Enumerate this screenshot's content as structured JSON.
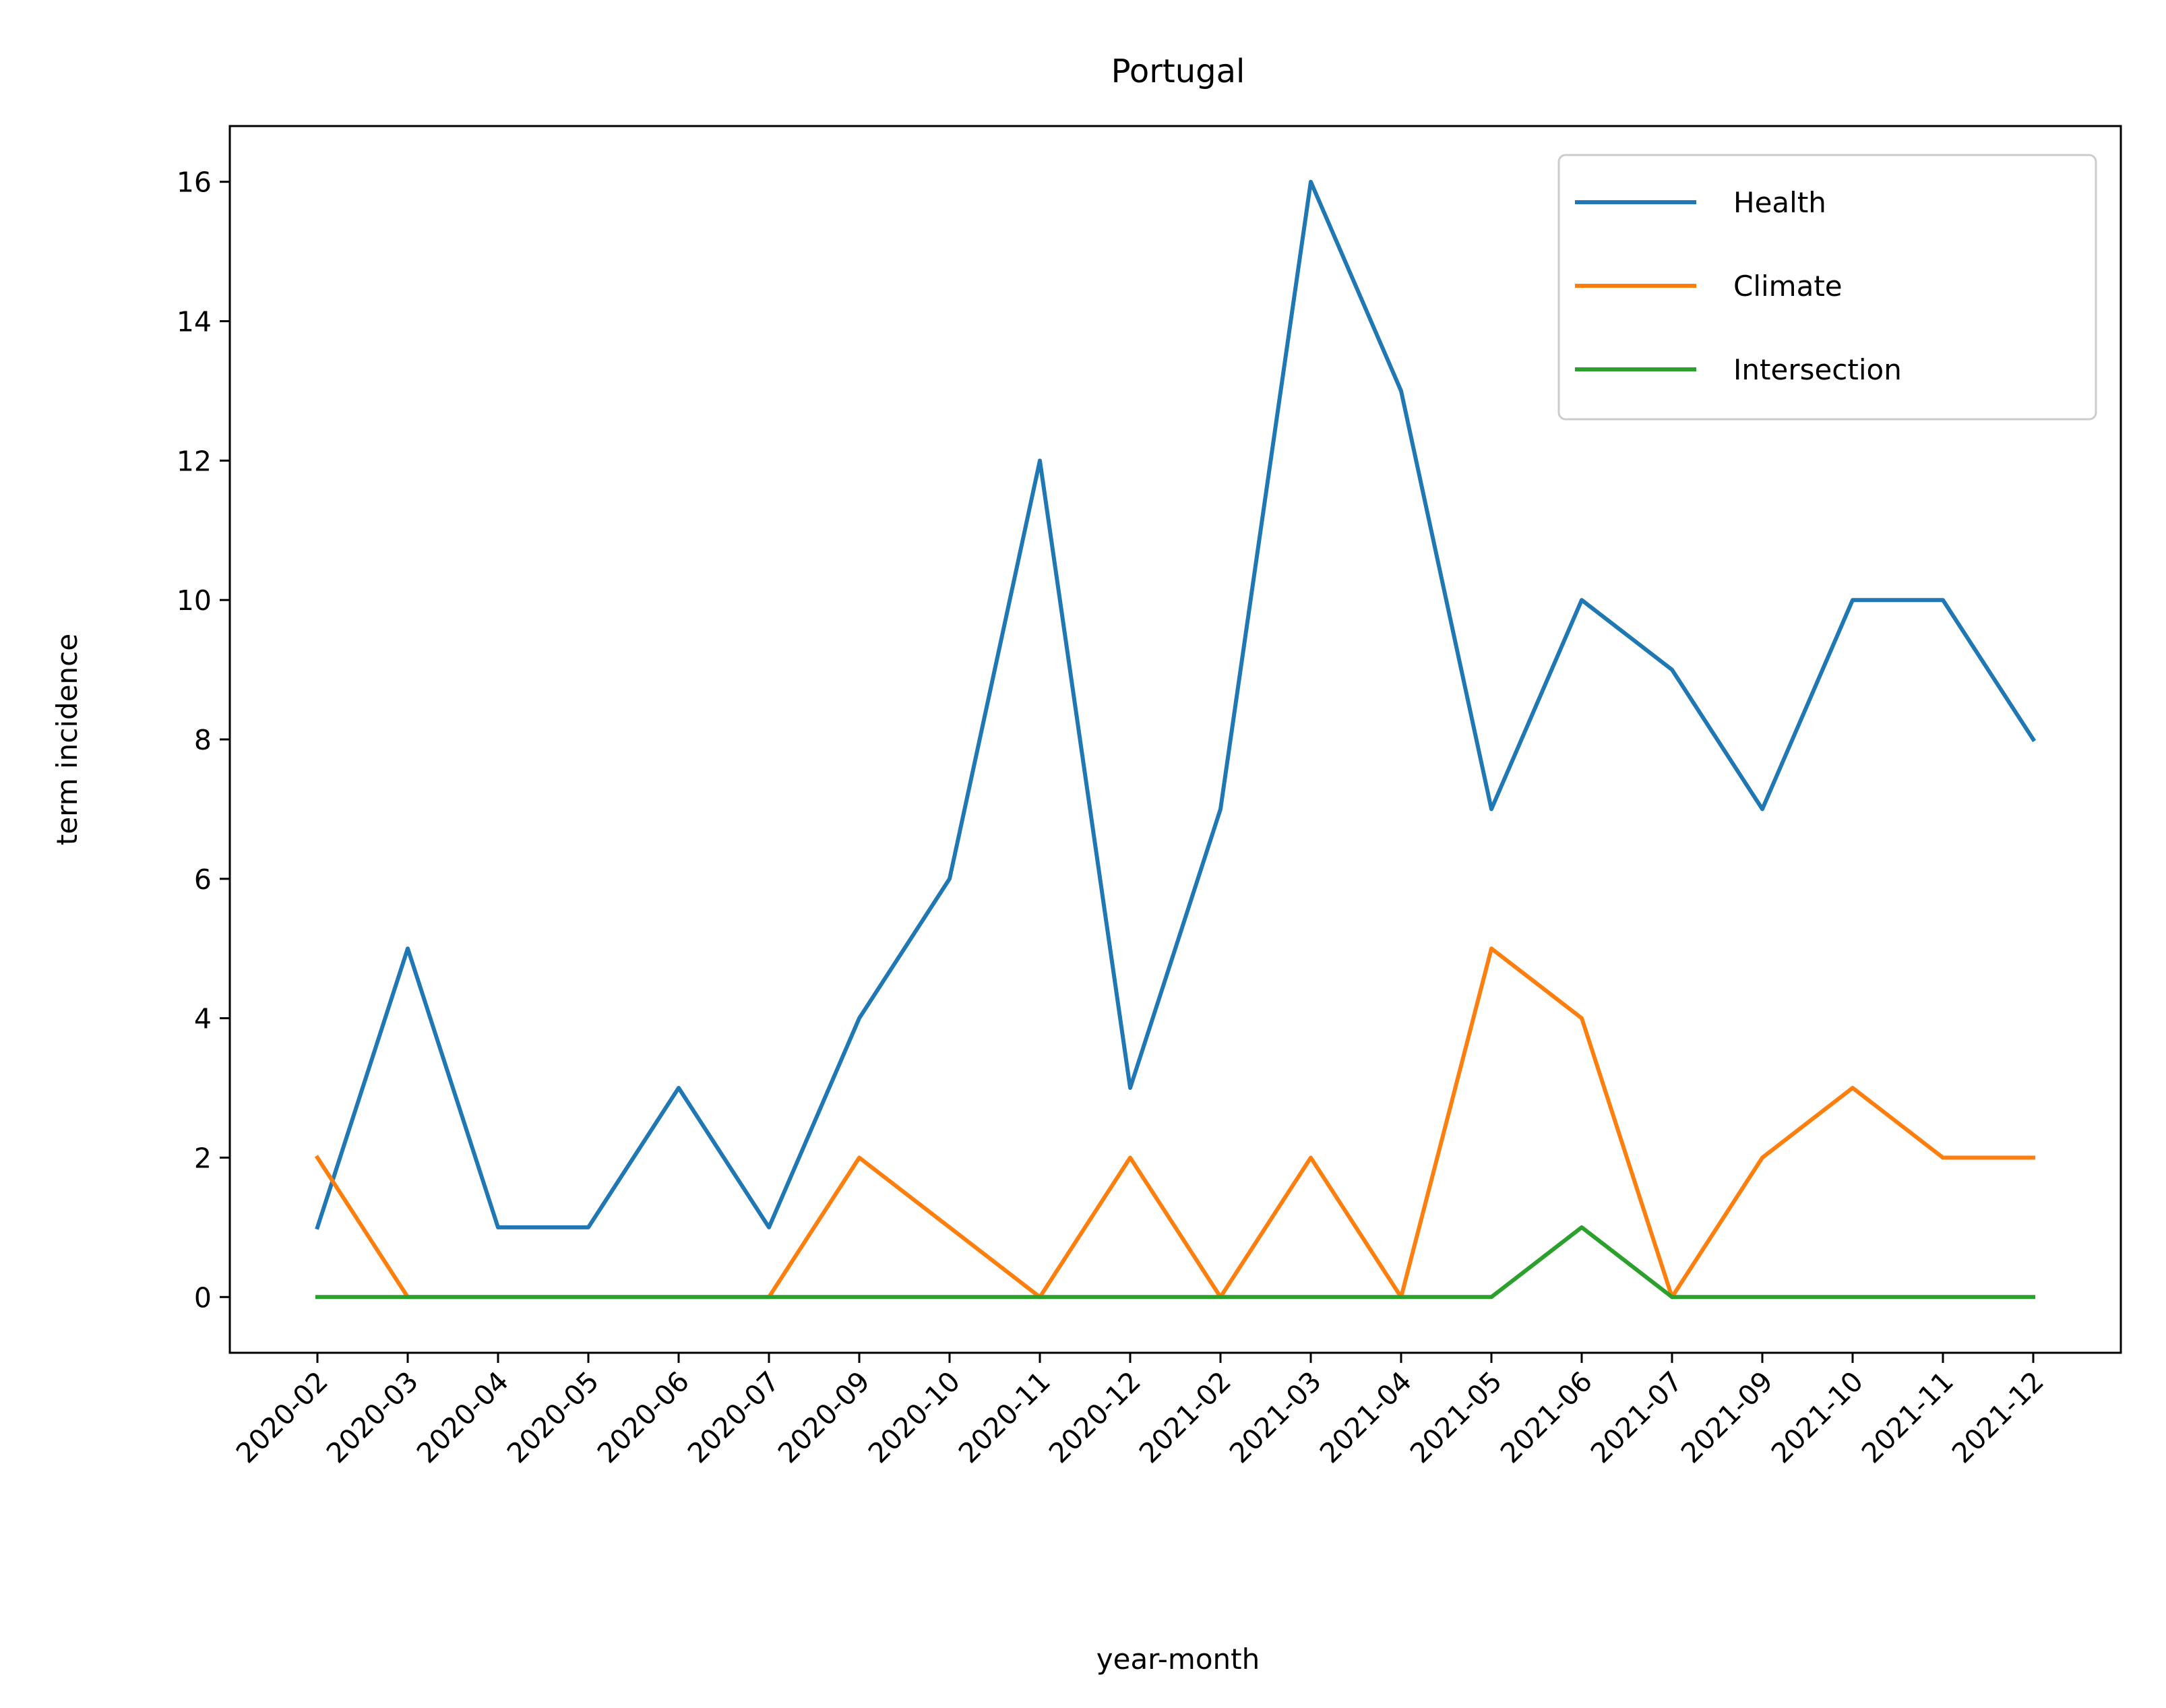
{
  "chart_data": {
    "type": "line",
    "title": "Portugal",
    "xlabel": "year-month",
    "ylabel": "term incidence",
    "categories": [
      "2020-02",
      "2020-03",
      "2020-04",
      "2020-05",
      "2020-06",
      "2020-07",
      "2020-09",
      "2020-10",
      "2020-11",
      "2020-12",
      "2021-02",
      "2021-03",
      "2021-04",
      "2021-05",
      "2021-06",
      "2021-07",
      "2021-09",
      "2021-10",
      "2021-11",
      "2021-12"
    ],
    "yticks": [
      0,
      2,
      4,
      6,
      8,
      10,
      12,
      14,
      16
    ],
    "ylim": [
      -0.8,
      16.8
    ],
    "grid": false,
    "legend_position": "top-right",
    "series": [
      {
        "name": "Health",
        "color": "#1f77b4",
        "values": [
          1,
          5,
          1,
          1,
          3,
          1,
          4,
          6,
          12,
          3,
          7,
          16,
          13,
          7,
          10,
          9,
          7,
          10,
          10,
          8
        ]
      },
      {
        "name": "Climate",
        "color": "#ff7f0e",
        "values": [
          2,
          0,
          0,
          0,
          0,
          0,
          2,
          1,
          0,
          2,
          0,
          2,
          0,
          5,
          4,
          0,
          2,
          3,
          2,
          2
        ]
      },
      {
        "name": "Intersection",
        "color": "#2ca02c",
        "values": [
          0,
          0,
          0,
          0,
          0,
          0,
          0,
          0,
          0,
          0,
          0,
          0,
          0,
          0,
          1,
          0,
          0,
          0,
          0,
          0
        ]
      }
    ]
  }
}
